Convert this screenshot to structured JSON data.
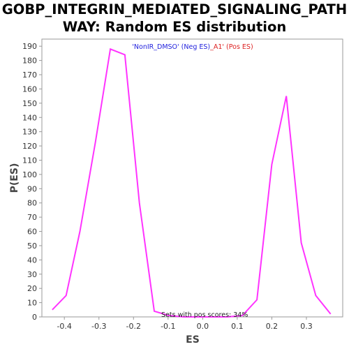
{
  "chart_data": {
    "type": "line",
    "title_line1": "GOBP_INTEGRIN_MEDIATED_SIGNALING_PATH",
    "title_line2": "WAY: Random ES distribution",
    "xlabel": "ES",
    "ylabel": "P(ES)",
    "xlim": [
      -0.465,
      0.405
    ],
    "ylim": [
      0,
      195
    ],
    "xticks": [
      -0.4,
      -0.3,
      -0.2,
      -0.1,
      0.0,
      0.1,
      0.2,
      0.3
    ],
    "xtick_labels": [
      "-0.4",
      "-0.3",
      "-0.2",
      "-0.1",
      "0.0",
      "0.1",
      "0.2",
      "0.3"
    ],
    "yticks": [
      0,
      10,
      20,
      30,
      40,
      50,
      60,
      70,
      80,
      90,
      100,
      110,
      120,
      130,
      140,
      150,
      160,
      170,
      180,
      190
    ],
    "line_color": "#ff33ff",
    "series": [
      {
        "x": [
          -0.435,
          -0.395,
          -0.355,
          -0.31,
          -0.267,
          -0.225,
          -0.183,
          -0.14,
          -0.098,
          -0.055,
          -0.013,
          0.03,
          0.072,
          0.115,
          0.157,
          0.2,
          0.242,
          0.285,
          0.327,
          0.37
        ],
        "y": [
          5,
          15,
          60,
          123,
          188,
          184,
          80,
          4,
          1,
          0,
          0,
          0,
          0,
          1,
          12,
          107,
          155,
          52,
          15,
          2
        ]
      }
    ],
    "legend": {
      "placement": "top-center",
      "entries": [
        {
          "text": "'NonIR_DMSO' (Neg ES)",
          "color": "#2222dd"
        },
        {
          "text": "_A1' (Pos ES)",
          "color": "#dd2222"
        }
      ]
    },
    "annotation": "Sets with pos scores: 34%",
    "grid": false
  }
}
